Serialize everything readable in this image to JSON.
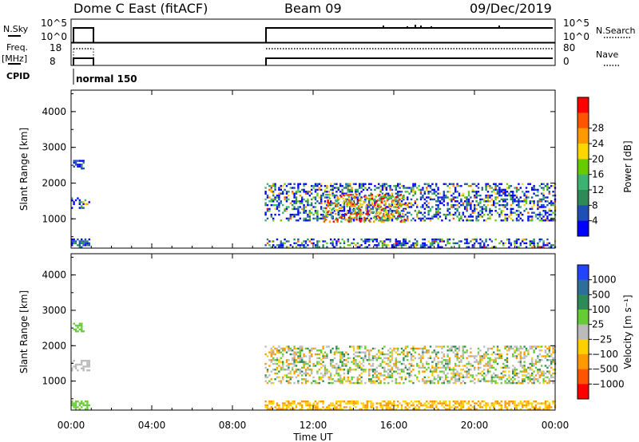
{
  "header": {
    "station": "Dome C East (fitACF)",
    "beam": "Beam 09",
    "date": "09/Dec/2019"
  },
  "strips": {
    "nsky": {
      "label": "N.Sky",
      "top_tick": "10^5",
      "bottom_tick": "10^0"
    },
    "nsearch": {
      "label": "N.Search",
      "top_tick": "10^5",
      "bottom_tick": "10^0"
    },
    "freq": {
      "label_line1": "Freq.",
      "label_line2": "[MHz]",
      "top_tick": "18",
      "bottom_tick": "8"
    },
    "nave": {
      "label": "Nave",
      "top_tick": "80",
      "bottom_tick": "0"
    },
    "cpid": {
      "label": "CPID",
      "mode": "normal 150"
    }
  },
  "colors": {
    "power": [
      "#0000ff",
      "#1e4fb4",
      "#2e8b57",
      "#3cb371",
      "#66cc00",
      "#ffd700",
      "#ff9900",
      "#ff5500",
      "#ff0000"
    ],
    "velocity": [
      "#2244ff",
      "#2d6e9a",
      "#2e8b57",
      "#66cc33",
      "#bbbbbb",
      "#ffd000",
      "#ff9900",
      "#ff5500",
      "#ff0000"
    ]
  },
  "chart_data": [
    {
      "type": "heatmap",
      "name": "power",
      "xlabel": "",
      "ylabel": "Slant Range [km]",
      "x_ticks": [
        "00:00",
        "04:00",
        "08:00",
        "12:00",
        "16:00",
        "20:00",
        "00:00"
      ],
      "xlim": [
        0,
        24
      ],
      "ylim": [
        180,
        4600
      ],
      "y_ticks": [
        "1000",
        "2000",
        "3000",
        "4000"
      ],
      "colorbar": {
        "label": "Power [dB]",
        "ticks": [
          "4",
          "8",
          "12",
          "16",
          "20",
          "24",
          "28"
        ]
      },
      "regions": [
        {
          "t0": 0.0,
          "t1": 0.9,
          "r0": 1300,
          "r1": 1600,
          "level": "mixed"
        },
        {
          "t0": 0.1,
          "t1": 0.6,
          "r0": 2400,
          "r1": 2650,
          "level": "low"
        },
        {
          "t0": 0.0,
          "t1": 0.9,
          "r0": 200,
          "r1": 450,
          "level": "low"
        },
        {
          "t0": 9.6,
          "t1": 24.0,
          "r0": 200,
          "r1": 450,
          "level": "mixed"
        },
        {
          "t0": 9.6,
          "t1": 24.0,
          "r0": 950,
          "r1": 2000,
          "level": "mixed"
        },
        {
          "t0": 12.5,
          "t1": 16.5,
          "r0": 900,
          "r1": 1700,
          "level": "high"
        }
      ]
    },
    {
      "type": "heatmap",
      "name": "velocity",
      "xlabel": "Time UT",
      "ylabel": "Slant Range [km]",
      "x_ticks": [
        "00:00",
        "04:00",
        "08:00",
        "12:00",
        "16:00",
        "20:00",
        "00:00"
      ],
      "xlim": [
        0,
        24
      ],
      "ylim": [
        180,
        4600
      ],
      "y_ticks": [
        "1000",
        "2000",
        "3000",
        "4000"
      ],
      "colorbar": {
        "label": "Velocity [m s⁻¹]",
        "ticks": [
          "1000",
          "500",
          "100",
          "25",
          "−25",
          "−100",
          "−500",
          "−1000"
        ]
      },
      "regions": [
        {
          "t0": 0.0,
          "t1": 0.9,
          "r0": 1300,
          "r1": 1600,
          "level": "grey"
        },
        {
          "t0": 0.1,
          "t1": 0.6,
          "r0": 2400,
          "r1": 2650,
          "level": "green"
        },
        {
          "t0": 0.0,
          "t1": 0.9,
          "r0": 200,
          "r1": 450,
          "level": "green"
        },
        {
          "t0": 9.6,
          "t1": 24.0,
          "r0": 200,
          "r1": 450,
          "level": "orange"
        },
        {
          "t0": 9.6,
          "t1": 24.0,
          "r0": 950,
          "r1": 2000,
          "level": "mixed"
        }
      ]
    }
  ]
}
